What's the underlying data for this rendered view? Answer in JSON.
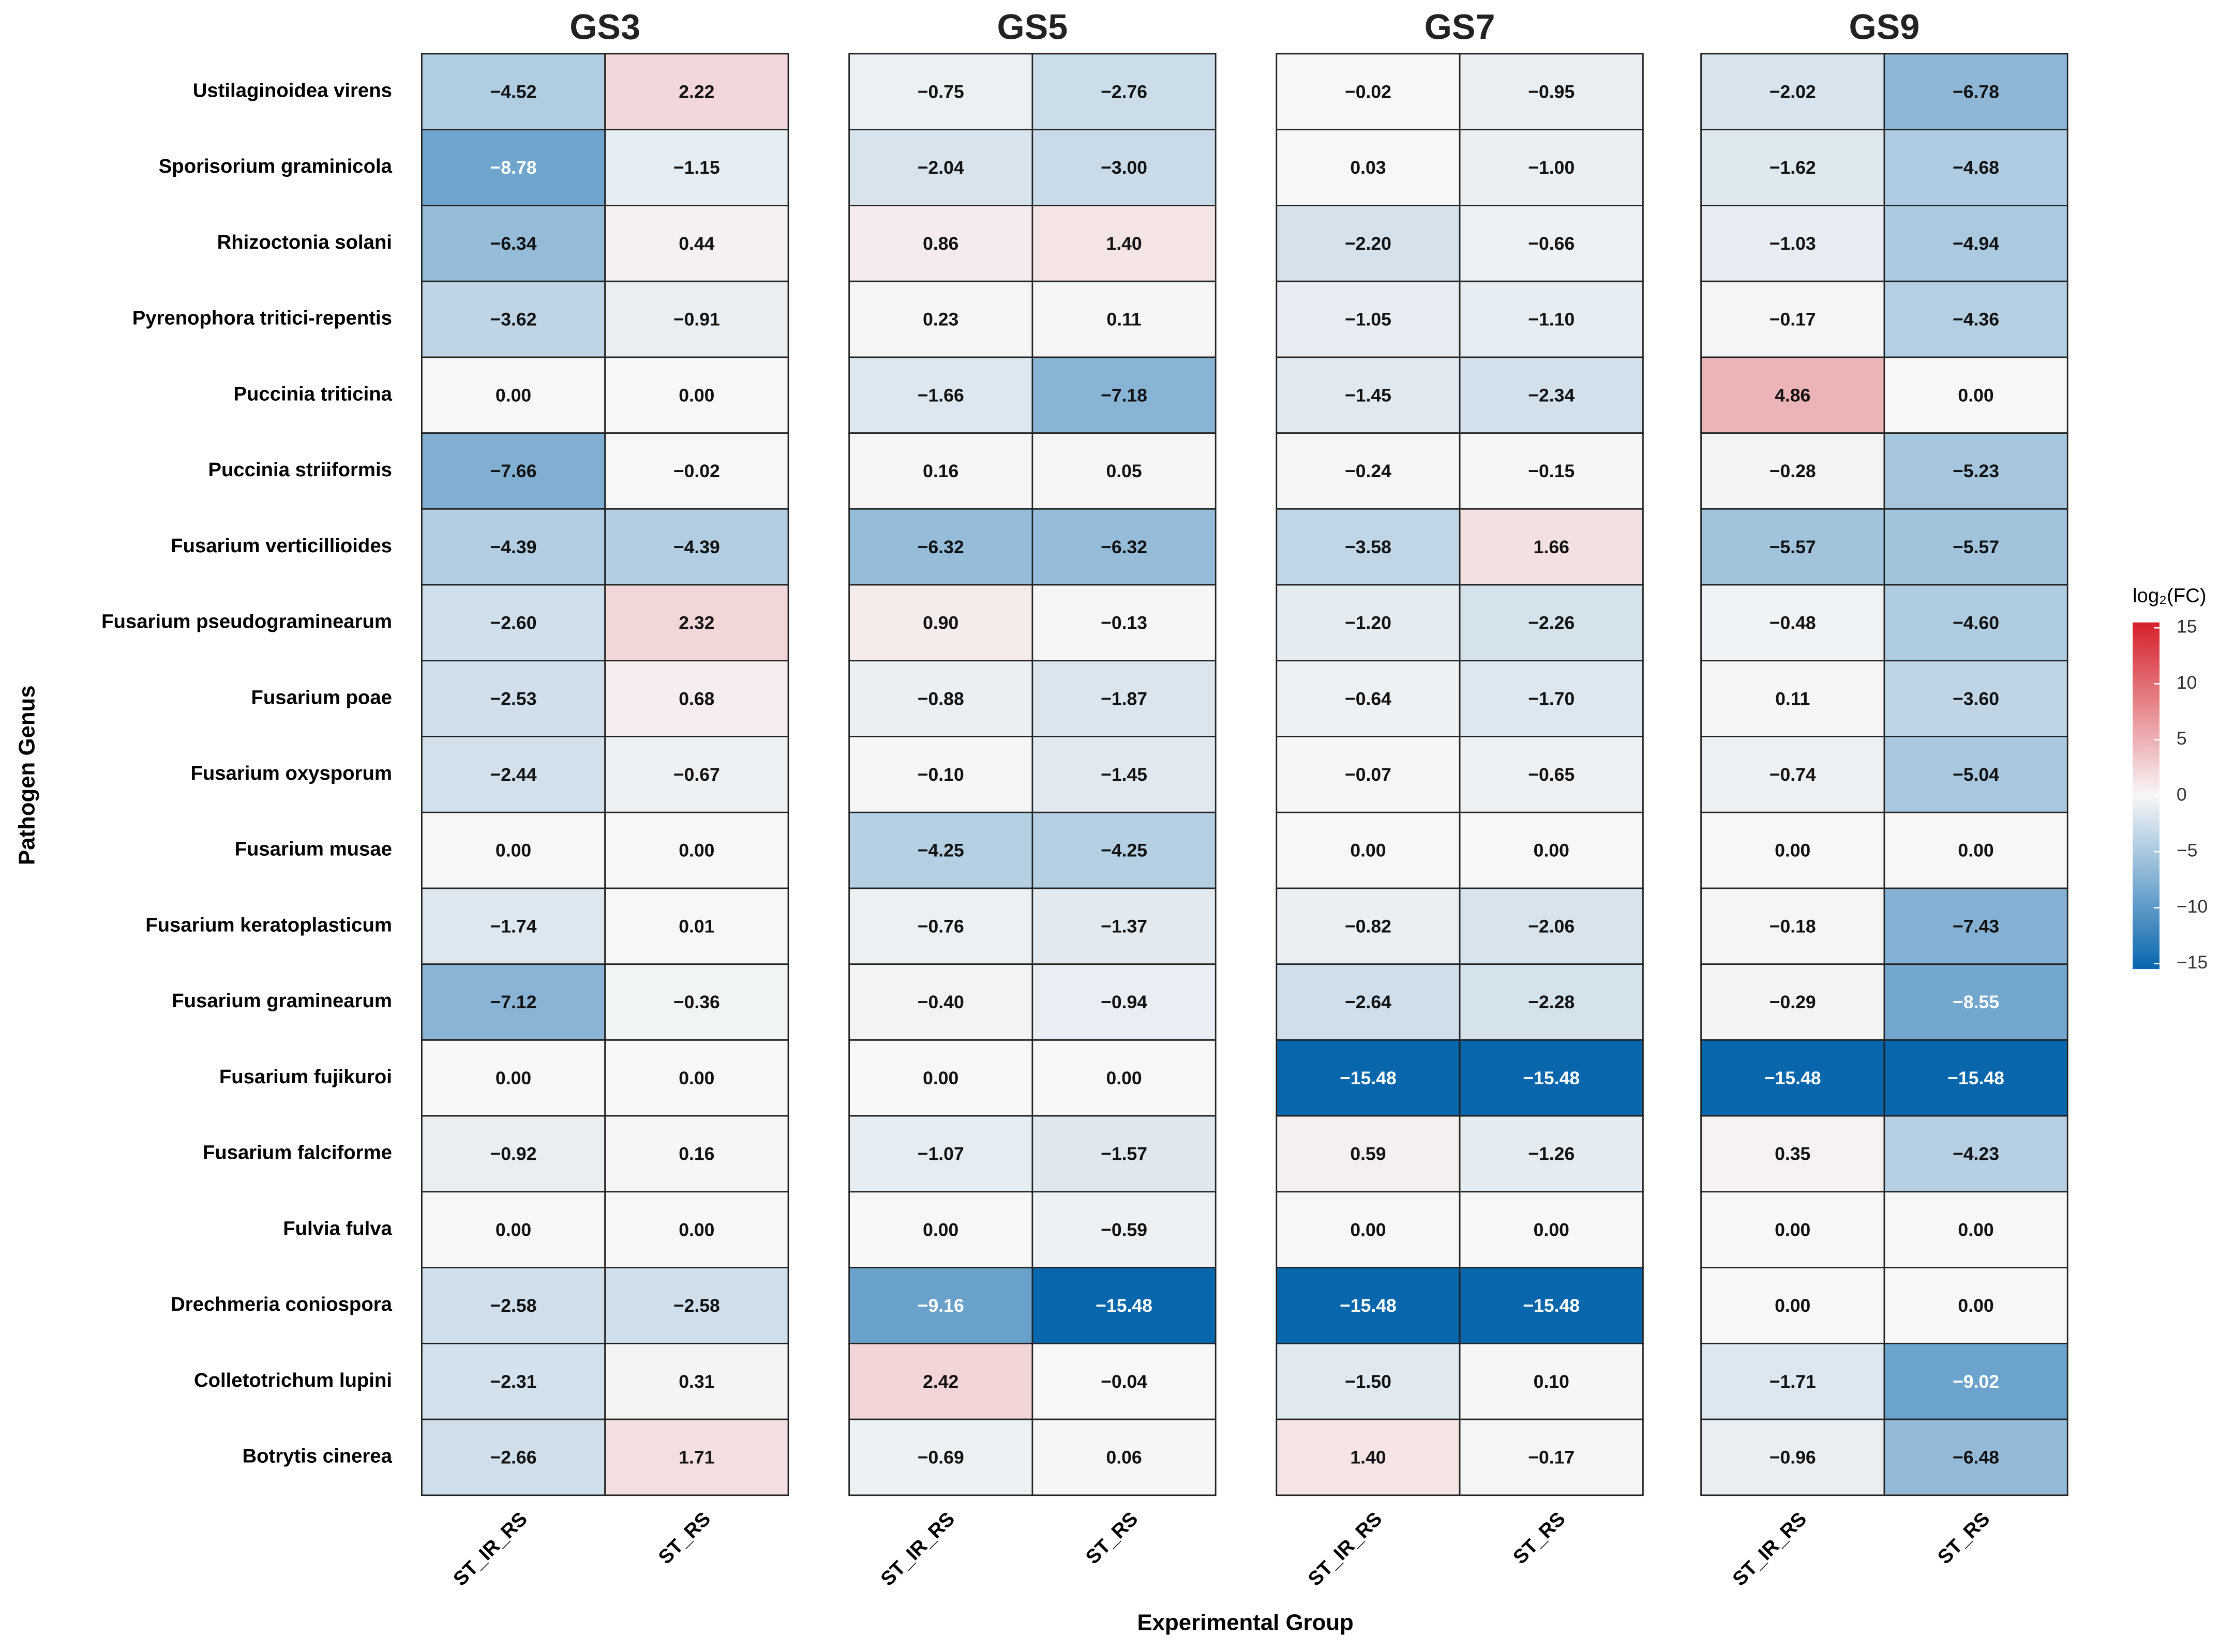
{
  "chart_data": {
    "type": "heatmap",
    "y_label": "Pathogen Genus",
    "x_label": "Experimental Group",
    "rows": [
      "Ustilaginoidea virens",
      "Sporisorium graminicola",
      "Rhizoctonia solani",
      "Pyrenophora tritici-repentis",
      "Puccinia triticina",
      "Puccinia striiformis",
      "Fusarium verticillioides",
      "Fusarium pseudograminearum",
      "Fusarium poae",
      "Fusarium oxysporum",
      "Fusarium musae",
      "Fusarium keratoplasticum",
      "Fusarium graminearum",
      "Fusarium fujikuroi",
      "Fusarium falciforme",
      "Fulvia fulva",
      "Drechmeria coniospora",
      "Colletotrichum lupini",
      "Botrytis cinerea"
    ],
    "columns": [
      "ST_IR_RS",
      "ST_RS"
    ],
    "panels": [
      {
        "title": "GS3",
        "values": [
          [
            -4.52,
            2.22
          ],
          [
            -8.78,
            -1.15
          ],
          [
            -6.34,
            0.44
          ],
          [
            -3.62,
            -0.91
          ],
          [
            0,
            0
          ],
          [
            -7.66,
            -0.02
          ],
          [
            -4.39,
            -4.39
          ],
          [
            -2.6,
            2.32
          ],
          [
            -2.53,
            0.68
          ],
          [
            -2.44,
            -0.67
          ],
          [
            0,
            0
          ],
          [
            -1.74,
            0.01
          ],
          [
            -7.12,
            -0.36
          ],
          [
            0,
            0
          ],
          [
            -0.92,
            0.16
          ],
          [
            0,
            0
          ],
          [
            -2.58,
            -2.58
          ],
          [
            -2.31,
            0.31
          ],
          [
            -2.66,
            1.71
          ]
        ],
        "value_labels": [
          [
            "−4.52",
            "2.22"
          ],
          [
            "−8.78",
            "−1.15"
          ],
          [
            "−6.34",
            "0.44"
          ],
          [
            "−3.62",
            "−0.91"
          ],
          [
            "0.00",
            "0.00"
          ],
          [
            "−7.66",
            "−0.02"
          ],
          [
            "−4.39",
            "−4.39"
          ],
          [
            "−2.60",
            "2.32"
          ],
          [
            "−2.53",
            "0.68"
          ],
          [
            "−2.44",
            "−0.67"
          ],
          [
            "0.00",
            "0.00"
          ],
          [
            "−1.74",
            "0.01"
          ],
          [
            "−7.12",
            "−0.36"
          ],
          [
            "0.00",
            "0.00"
          ],
          [
            "−0.92",
            "0.16"
          ],
          [
            "0.00",
            "0.00"
          ],
          [
            "−2.58",
            "−2.58"
          ],
          [
            "−2.31",
            "0.31"
          ],
          [
            "−2.66",
            "1.71"
          ]
        ]
      },
      {
        "title": "GS5",
        "values": [
          [
            -0.75,
            -2.76
          ],
          [
            -2.04,
            -3
          ],
          [
            0.86,
            1.4
          ],
          [
            0.23,
            0.11
          ],
          [
            -1.66,
            -7.18
          ],
          [
            0.16,
            0.05
          ],
          [
            -6.32,
            -6.32
          ],
          [
            0.9,
            -0.13
          ],
          [
            -0.88,
            -1.87
          ],
          [
            -0.1,
            -1.45
          ],
          [
            -4.25,
            -4.25
          ],
          [
            -0.76,
            -1.37
          ],
          [
            -0.4,
            -0.94
          ],
          [
            0,
            0
          ],
          [
            -1.07,
            -1.57
          ],
          [
            0,
            -0.59
          ],
          [
            -9.16,
            -15.48
          ],
          [
            2.42,
            -0.04
          ],
          [
            -0.69,
            0.06
          ]
        ],
        "value_labels": [
          [
            "−0.75",
            "−2.76"
          ],
          [
            "−2.04",
            "−3.00"
          ],
          [
            "0.86",
            "1.40"
          ],
          [
            "0.23",
            "0.11"
          ],
          [
            "−1.66",
            "−7.18"
          ],
          [
            "0.16",
            "0.05"
          ],
          [
            "−6.32",
            "−6.32"
          ],
          [
            "0.90",
            "−0.13"
          ],
          [
            "−0.88",
            "−1.87"
          ],
          [
            "−0.10",
            "−1.45"
          ],
          [
            "−4.25",
            "−4.25"
          ],
          [
            "−0.76",
            "−1.37"
          ],
          [
            "−0.40",
            "−0.94"
          ],
          [
            "0.00",
            "0.00"
          ],
          [
            "−1.07",
            "−1.57"
          ],
          [
            "0.00",
            "−0.59"
          ],
          [
            "−9.16",
            "−15.48"
          ],
          [
            "2.42",
            "−0.04"
          ],
          [
            "−0.69",
            "0.06"
          ]
        ]
      },
      {
        "title": "GS7",
        "values": [
          [
            -0.02,
            -0.95
          ],
          [
            0.03,
            -1
          ],
          [
            -2.2,
            -0.66
          ],
          [
            -1.05,
            -1.1
          ],
          [
            -1.45,
            -2.34
          ],
          [
            -0.24,
            -0.15
          ],
          [
            -3.58,
            1.66
          ],
          [
            -1.2,
            -2.26
          ],
          [
            -0.64,
            -1.7
          ],
          [
            -0.07,
            -0.65
          ],
          [
            0,
            0
          ],
          [
            -0.82,
            -2.06
          ],
          [
            -2.64,
            -2.28
          ],
          [
            -15.48,
            -15.48
          ],
          [
            0.59,
            -1.26
          ],
          [
            0,
            0
          ],
          [
            -15.48,
            -15.48
          ],
          [
            -1.5,
            0.1
          ],
          [
            1.4,
            -0.17
          ]
        ],
        "value_labels": [
          [
            "−0.02",
            "−0.95"
          ],
          [
            "0.03",
            "−1.00"
          ],
          [
            "−2.20",
            "−0.66"
          ],
          [
            "−1.05",
            "−1.10"
          ],
          [
            "−1.45",
            "−2.34"
          ],
          [
            "−0.24",
            "−0.15"
          ],
          [
            "−3.58",
            "1.66"
          ],
          [
            "−1.20",
            "−2.26"
          ],
          [
            "−0.64",
            "−1.70"
          ],
          [
            "−0.07",
            "−0.65"
          ],
          [
            "0.00",
            "0.00"
          ],
          [
            "−0.82",
            "−2.06"
          ],
          [
            "−2.64",
            "−2.28"
          ],
          [
            "−15.48",
            "−15.48"
          ],
          [
            "0.59",
            "−1.26"
          ],
          [
            "0.00",
            "0.00"
          ],
          [
            "−15.48",
            "−15.48"
          ],
          [
            "−1.50",
            "0.10"
          ],
          [
            "1.40",
            "−0.17"
          ]
        ]
      },
      {
        "title": "GS9",
        "values": [
          [
            -2.02,
            -6.78
          ],
          [
            -1.62,
            -4.68
          ],
          [
            -1.03,
            -4.94
          ],
          [
            -0.17,
            -4.36
          ],
          [
            4.86,
            0
          ],
          [
            -0.28,
            -5.23
          ],
          [
            -5.57,
            -5.57
          ],
          [
            -0.48,
            -4.6
          ],
          [
            0.11,
            -3.6
          ],
          [
            -0.74,
            -5.04
          ],
          [
            0,
            0
          ],
          [
            -0.18,
            -7.43
          ],
          [
            -0.29,
            -8.55
          ],
          [
            -15.48,
            -15.48
          ],
          [
            0.35,
            -4.23
          ],
          [
            0,
            0
          ],
          [
            0,
            0
          ],
          [
            -1.71,
            -9.02
          ],
          [
            -0.96,
            -6.48
          ]
        ],
        "value_labels": [
          [
            "−2.02",
            "−6.78"
          ],
          [
            "−1.62",
            "−4.68"
          ],
          [
            "−1.03",
            "−4.94"
          ],
          [
            "−0.17",
            "−4.36"
          ],
          [
            "4.86",
            "0.00"
          ],
          [
            "−0.28",
            "−5.23"
          ],
          [
            "−5.57",
            "−5.57"
          ],
          [
            "−0.48",
            "−4.60"
          ],
          [
            "0.11",
            "−3.60"
          ],
          [
            "−0.74",
            "−5.04"
          ],
          [
            "0.00",
            "0.00"
          ],
          [
            "−0.18",
            "−7.43"
          ],
          [
            "−0.29",
            "−8.55"
          ],
          [
            "−15.48",
            "−15.48"
          ],
          [
            "0.35",
            "−4.23"
          ],
          [
            "0.00",
            "0.00"
          ],
          [
            "0.00",
            "0.00"
          ],
          [
            "−1.71",
            "−9.02"
          ],
          [
            "−0.96",
            "−6.48"
          ]
        ]
      }
    ],
    "colorbar_title": "log₂(FC)",
    "colorbar_lim": [
      -15.48,
      15.48
    ],
    "colorbar_ticks": [
      15,
      10,
      5,
      0,
      {
        "value": -5,
        "label": "−5"
      },
      {
        "value": -10,
        "label": "−10"
      },
      {
        "value": -15,
        "label": "−15"
      }
    ],
    "colors": {
      "low": "#0866ad",
      "mid": "#f7f7f7",
      "high": "#d6202a"
    }
  }
}
